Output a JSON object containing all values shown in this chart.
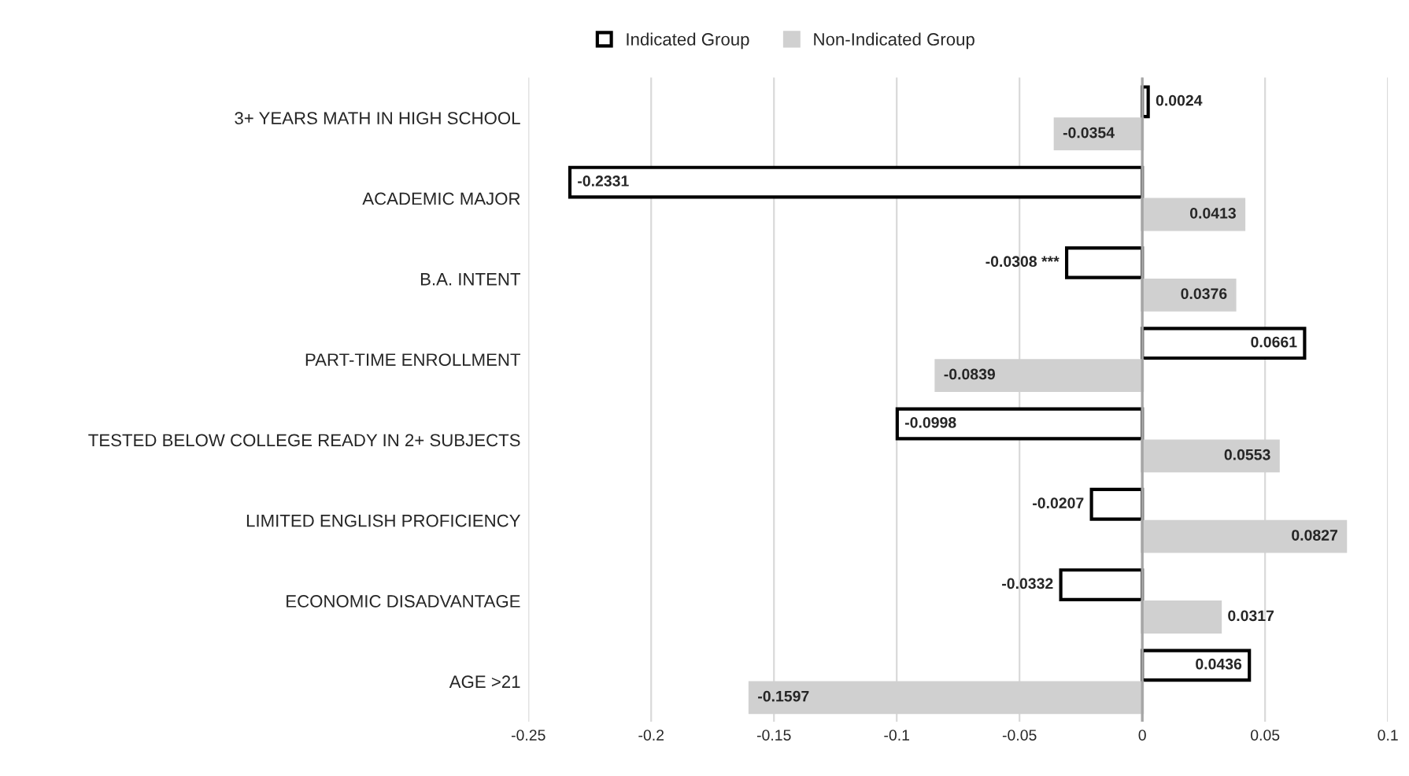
{
  "chart_data": {
    "type": "bar",
    "orientation": "horizontal",
    "categories": [
      "3+ YEARS MATH IN HIGH SCHOOL",
      "ACADEMIC MAJOR",
      "B.A. INTENT",
      "PART-TIME ENROLLMENT",
      "TESTED BELOW COLLEGE READY IN 2+ SUBJECTS",
      "LIMITED ENGLISH PROFICIENCY",
      "ECONOMIC DISADVANTAGE",
      "AGE >21"
    ],
    "series": [
      {
        "name": "Indicated Group",
        "color": "#ffffff",
        "values": [
          0.0024,
          -0.2331,
          -0.0308,
          0.0661,
          -0.0998,
          -0.0207,
          -0.0332,
          0.0436
        ],
        "value_labels": [
          "0.0024",
          "-0.2331",
          "-0.0308 ***",
          "0.0661",
          "-0.0998",
          "-0.0207",
          "-0.0332",
          "0.0436"
        ]
      },
      {
        "name": "Non-Indicated Group",
        "color": "#d0d0d0",
        "values": [
          -0.0354,
          0.0413,
          0.0376,
          -0.0839,
          0.0553,
          0.0827,
          0.0317,
          -0.1597
        ],
        "value_labels": [
          "-0.0354",
          "0.0413",
          "0.0376",
          "-0.0839",
          "0.0553",
          "0.0827",
          "0.0317",
          "-0.1597"
        ]
      }
    ],
    "xlim": [
      -0.25,
      0.1
    ],
    "xticks": [
      -0.25,
      -0.2,
      -0.15,
      -0.1,
      -0.05,
      0,
      0.05,
      0.1
    ],
    "ref_lines": [
      {
        "axis": "x",
        "value": 0,
        "color": "#a6a6a6"
      }
    ],
    "grid": "x",
    "legend": "top"
  }
}
